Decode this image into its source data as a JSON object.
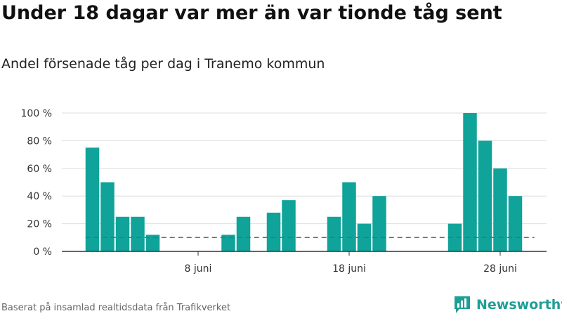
{
  "title": "Under 18 dagar var mer än var tionde tåg sent",
  "subtitle": "Andel försenade tåg per dag i Tranemo kommun",
  "footer": "Baserat på insamlad realtidsdata från Trafikverket",
  "brand": "Newsworthy",
  "colors": {
    "bar": "#0fa39a",
    "reference_line": "#666666",
    "grid": "#dddddd",
    "brand": "#1f9e96"
  },
  "chart_data": {
    "type": "bar",
    "title": "",
    "xlabel": "",
    "ylabel": "",
    "ylim": [
      0,
      100
    ],
    "y_ticks": [
      0,
      20,
      40,
      60,
      80,
      100
    ],
    "y_tick_labels": [
      "0 %",
      "20 %",
      "40 %",
      "60 %",
      "80 %",
      "100 %"
    ],
    "x_tick_labels": [
      "8 juni",
      "18 juni",
      "28 juni"
    ],
    "x_tick_days": [
      8,
      18,
      28
    ],
    "categories": [
      "1 juni",
      "2 juni",
      "3 juni",
      "4 juni",
      "5 juni",
      "6 juni",
      "7 juni",
      "8 juni",
      "9 juni",
      "10 juni",
      "11 juni",
      "12 juni",
      "13 juni",
      "14 juni",
      "15 juni",
      "16 juni",
      "17 juni",
      "18 juni",
      "19 juni",
      "20 juni",
      "21 juni",
      "22 juni",
      "23 juni",
      "24 juni",
      "25 juni",
      "26 juni",
      "27 juni",
      "28 juni",
      "29 juni",
      "30 juni"
    ],
    "days": [
      1,
      2,
      3,
      4,
      5,
      6,
      7,
      8,
      9,
      10,
      11,
      12,
      13,
      14,
      15,
      16,
      17,
      18,
      19,
      20,
      21,
      22,
      23,
      24,
      25,
      26,
      27,
      28,
      29,
      30
    ],
    "values": [
      75,
      50,
      25,
      25,
      12,
      0,
      0,
      0,
      0,
      12,
      25,
      0,
      28,
      37,
      0,
      0,
      25,
      50,
      20,
      40,
      0,
      0,
      0,
      0,
      20,
      100,
      80,
      60,
      40,
      0
    ],
    "reference_line": 10,
    "grid": true,
    "legend": "none"
  }
}
